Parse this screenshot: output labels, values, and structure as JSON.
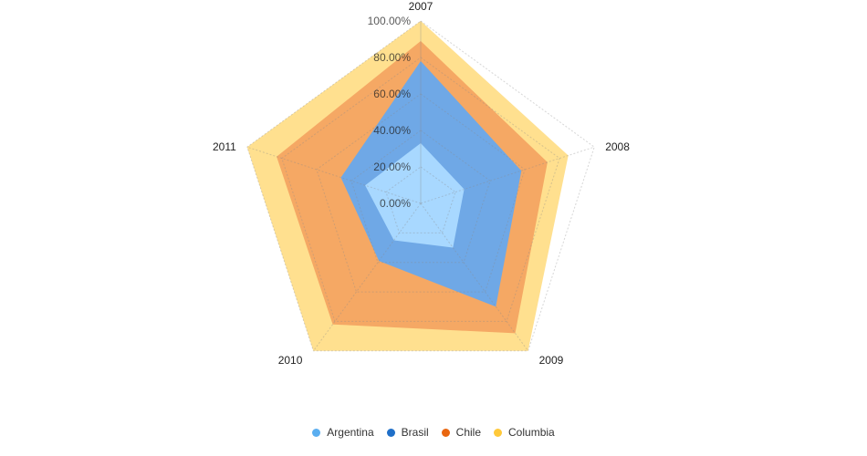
{
  "chart_data": {
    "type": "radar",
    "categories": [
      "2007",
      "2008",
      "2009",
      "2010",
      "2011"
    ],
    "stacked": true,
    "value_format": "percent",
    "ylim": [
      0,
      100
    ],
    "tick_values": [
      0,
      20,
      40,
      60,
      80,
      100
    ],
    "tick_labels": [
      "0.00%",
      "20.00%",
      "40.00%",
      "60.00%",
      "80.00%",
      "100.00%"
    ],
    "grid": true,
    "legend_position": "bottom-center",
    "series": [
      {
        "name": "Argentina",
        "values": [
          33,
          25,
          30,
          25,
          32
        ],
        "color": "#a8d8ff"
      },
      {
        "name": "Brasil",
        "values": [
          45,
          33,
          40,
          14,
          14
        ],
        "color": "#6fa8e6"
      },
      {
        "name": "Chile",
        "values": [
          11,
          15,
          18,
          43,
          37
        ],
        "color": "#f5a864"
      },
      {
        "name": "Columbia",
        "values": [
          11,
          12,
          12,
          18,
          17
        ],
        "color": "#ffe08f"
      }
    ],
    "legend_colors": [
      "#5aaef0",
      "#1f6fc8",
      "#e9660f",
      "#ffc93a"
    ]
  }
}
